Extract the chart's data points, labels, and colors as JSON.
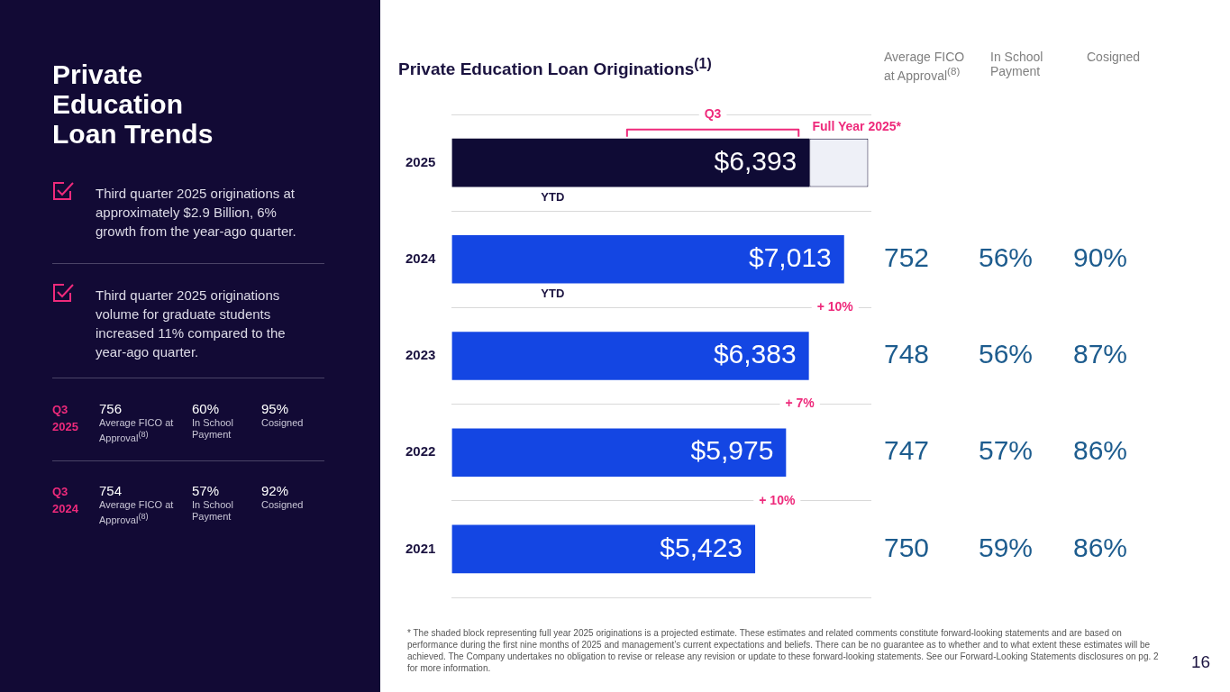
{
  "chart_data": {
    "type": "bar",
    "orientation": "horizontal",
    "stacked": true,
    "title": "Private Education Loan Originations$^{(1)}$",
    "subtitle": "Private Education Loan Trends",
    "categories": [
      "2025",
      "2024",
      "2023",
      "2022",
      "2021"
    ],
    "xlim": [
      0,
      7500
    ],
    "grid": "y",
    "legend": false,
    "series": [
      {
        "colors": [
          "#0f0b35",
          "#1446e3",
          "#1446e3",
          "#1446e3",
          "#1446e3"
        ],
        "values": [
          6393,
          7013,
          6383,
          5975,
          5423
        ],
        "value_labels": [
          "$6,393",
          "$7,013",
          "$6,383",
          "$5,975",
          "$5,423"
        ]
      },
      {
        "color": "#eef0f7",
        "values": [
          1050,
          null,
          null,
          null,
          null
        ]
      }
    ],
    "annotations": [
      "Third quarter 2025 originations at approximately $2.9 Billion, 6% growth from the year-ago quarter.",
      "Third quarter 2025 originations volume for graduate students increased 11% compared to the year-ago quarter.",
      "Q3 2025",
      "756",
      "Average FICO at Approval$^{(8)}$",
      "60%",
      "In School Payment",
      "95%",
      "Cosigned",
      "Q3 2024",
      "754",
      "Average FICO at Approval$^{(8)}$",
      "57%",
      "In School Payment",
      "92%",
      "Cosigned",
      "Average FICO at Approval$^{(8)}$",
      "In School Payment",
      "Cosigned",
      "Q3",
      "Full Year 2025*",
      "YTD",
      "YTD",
      "+ 10%",
      "+ 7%",
      "+ 10%",
      "* The shaded block representing full year 2025 originations is a projected estimate.  These estimates and related comments constitute forward-looking statements and are based on performance during the first nine months of 2025 and management’s current expectations and beliefs.  There can be no guarantee as to whether and to what extent these estimates will be achieved.  The Company undertakes no obligation to revise or release any revision or update to these forward-looking statements.  See our Forward-Looking Statements disclosures on pg. 2 for more information.",
      "16",
      "752",
      "56%",
      "90%",
      "748",
      "56%",
      "87%",
      "747",
      "57%",
      "86%",
      "750",
      "59%",
      "86%"
    ]
  }
}
